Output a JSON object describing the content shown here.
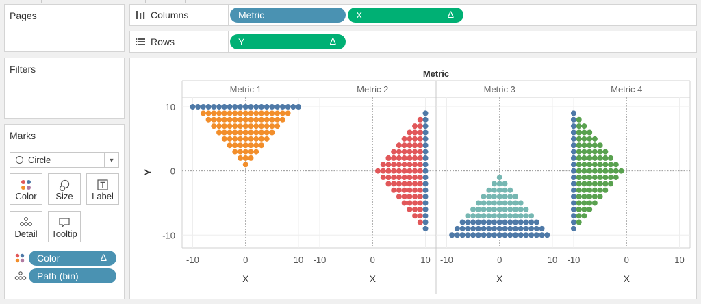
{
  "cards": {
    "pages_title": "Pages",
    "filters_title": "Filters",
    "marks_title": "Marks"
  },
  "marks": {
    "mark_type": "Circle",
    "buttons": {
      "color": "Color",
      "size": "Size",
      "label": "Label",
      "detail": "Detail",
      "tooltip": "Tooltip"
    },
    "pills": [
      {
        "label": "Color",
        "delta": "Δ",
        "icon": "color-dots-icon"
      },
      {
        "label": "Path (bin)",
        "icon": "path-dots-icon"
      }
    ]
  },
  "shelves": {
    "columns": {
      "label": "Columns",
      "icon": "columns-icon",
      "pills": [
        {
          "label": "Metric",
          "color": "#4a92b2"
        },
        {
          "label": "X",
          "delta": "Δ",
          "color": "#00b074"
        }
      ]
    },
    "rows": {
      "label": "Rows",
      "icon": "rows-icon",
      "pills": [
        {
          "label": "Y",
          "delta": "Δ",
          "color": "#00b074"
        }
      ]
    }
  },
  "colors": {
    "pill_blue": "#4a92b2",
    "pill_green": "#00b074",
    "orange": "#f28e2b",
    "red": "#e15759",
    "teal": "#76b7b2",
    "green": "#59a14f",
    "blue": "#4e79a7"
  },
  "chart_data": {
    "type": "scatter",
    "title": "Metric",
    "xlabel": "X",
    "ylabel": "Y",
    "xlim": [
      -12,
      12
    ],
    "ylim": [
      -12,
      11.5
    ],
    "x_ticks": [
      "-10",
      "0",
      "10"
    ],
    "y_ticks": [
      "10",
      "0",
      "-10"
    ],
    "panels": [
      {
        "name": "Metric 1",
        "shape": "triangle-down",
        "accent": "#f28e2b",
        "edge": "#4e79a7"
      },
      {
        "name": "Metric 2",
        "shape": "triangle-left",
        "accent": "#e15759",
        "edge": "#4e79a7"
      },
      {
        "name": "Metric 3",
        "shape": "triangle-up",
        "accent": "#76b7b2",
        "edge": "#4e79a7"
      },
      {
        "name": "Metric 4",
        "shape": "triangle-right",
        "accent": "#59a14f",
        "edge": "#4e79a7"
      }
    ]
  }
}
